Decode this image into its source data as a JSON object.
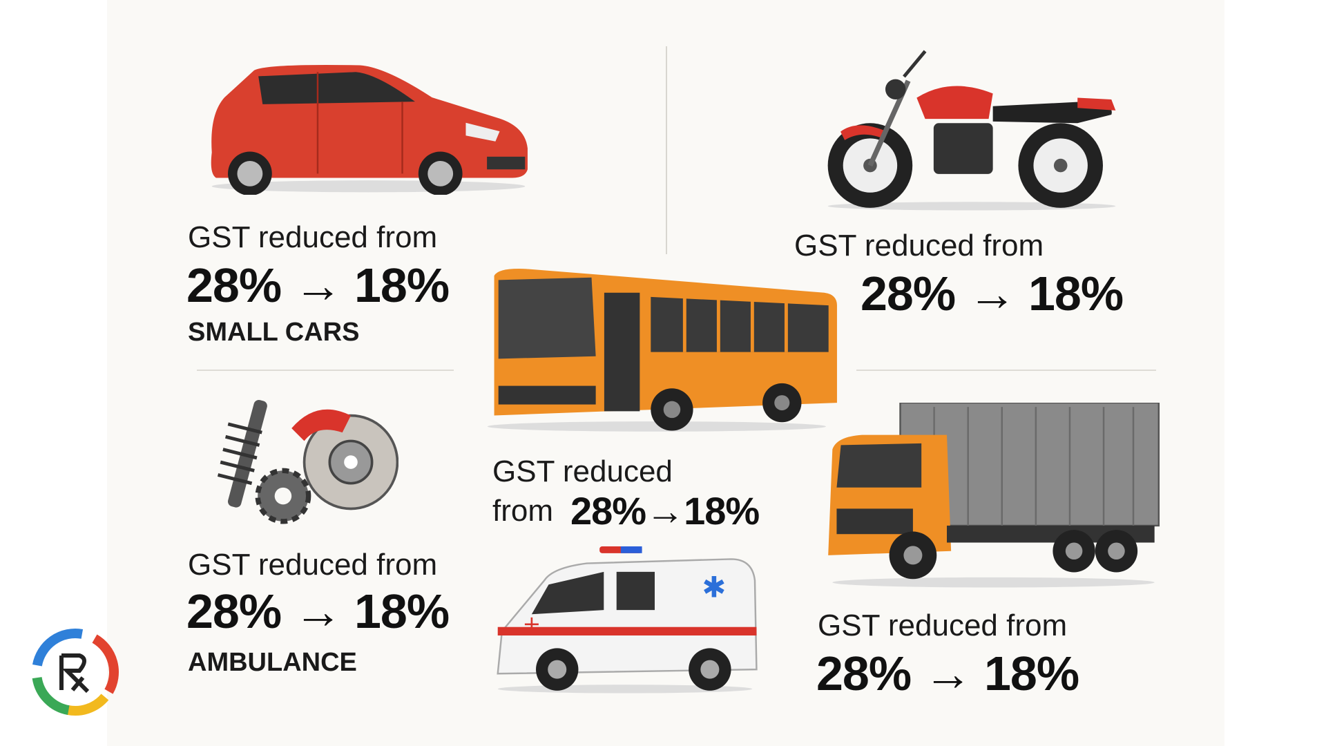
{
  "panels": [
    {
      "heading": "GST reduced from",
      "rate": "28% → 18%",
      "label": "SMALL CARS"
    },
    {
      "heading": "GST reduced from",
      "rate": "28% → 18%"
    },
    {
      "heading": "GST reduced",
      "prefix": "from",
      "rate": "28%→18%"
    },
    {
      "heading": "GST reduced from",
      "rate": "28% → 18%",
      "label": "AMBULANCE"
    },
    {
      "heading": "GST reduced from",
      "rate": "28% → 18%"
    }
  ]
}
